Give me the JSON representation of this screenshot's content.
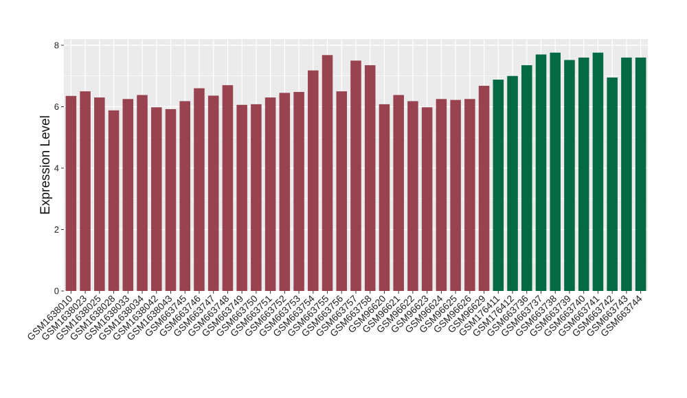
{
  "chart_data": {
    "type": "bar",
    "title": "",
    "xlabel": "",
    "ylabel": "Expression Level",
    "ylim": [
      0,
      8.2
    ],
    "yticks": [
      0,
      2,
      4,
      6,
      8
    ],
    "grid": true,
    "colors": {
      "group1": "#9A4350",
      "group2": "#046A44",
      "panel": "#EBEBEB",
      "grid": "#FFFFFF"
    },
    "categories": [
      "GSM1638010",
      "GSM1638023",
      "GSM1638025",
      "GSM1638028",
      "GSM1638033",
      "GSM1638034",
      "GSM1638042",
      "GSM1638043",
      "GSM663745",
      "GSM663746",
      "GSM663747",
      "GSM663748",
      "GSM663749",
      "GSM663750",
      "GSM663751",
      "GSM663752",
      "GSM663753",
      "GSM663754",
      "GSM663755",
      "GSM663756",
      "GSM663757",
      "GSM663758",
      "GSM96620",
      "GSM96621",
      "GSM96622",
      "GSM96623",
      "GSM96624",
      "GSM96625",
      "GSM96626",
      "GSM96629",
      "GSM176411",
      "GSM176412",
      "GSM663736",
      "GSM663737",
      "GSM663738",
      "GSM663739",
      "GSM663740",
      "GSM663741",
      "GSM663742",
      "GSM663743",
      "GSM663744"
    ],
    "values": [
      6.35,
      6.5,
      6.3,
      5.88,
      6.25,
      6.38,
      5.98,
      5.92,
      6.18,
      6.6,
      6.36,
      6.7,
      6.06,
      6.08,
      6.3,
      6.45,
      6.48,
      7.18,
      7.68,
      6.5,
      7.5,
      7.35,
      6.08,
      6.38,
      6.18,
      5.98,
      6.25,
      6.22,
      6.25,
      6.68,
      6.88,
      7.0,
      7.35,
      7.7,
      7.76,
      7.52,
      7.6,
      7.76,
      6.95,
      7.6,
      7.6
    ],
    "groups": [
      1,
      1,
      1,
      1,
      1,
      1,
      1,
      1,
      1,
      1,
      1,
      1,
      1,
      1,
      1,
      1,
      1,
      1,
      1,
      1,
      1,
      1,
      1,
      1,
      1,
      1,
      1,
      1,
      1,
      1,
      2,
      2,
      2,
      2,
      2,
      2,
      2,
      2,
      2,
      2,
      2
    ]
  }
}
